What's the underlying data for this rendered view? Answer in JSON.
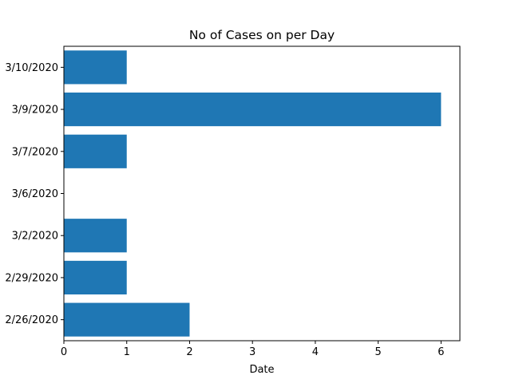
{
  "chart_data": {
    "type": "bar",
    "orientation": "horizontal",
    "title": "No of Cases on per Day",
    "xlabel": "Date",
    "ylabel": "",
    "categories": [
      "2/26/2020",
      "2/29/2020",
      "3/2/2020",
      "3/6/2020",
      "3/7/2020",
      "3/9/2020",
      "3/10/2020"
    ],
    "values": [
      2,
      1,
      1,
      0,
      1,
      6,
      1
    ],
    "xlim": [
      0,
      6.3
    ],
    "xticks": [
      0,
      1,
      2,
      3,
      4,
      5,
      6
    ],
    "grid": false,
    "bar_color": "#1f77b4"
  }
}
